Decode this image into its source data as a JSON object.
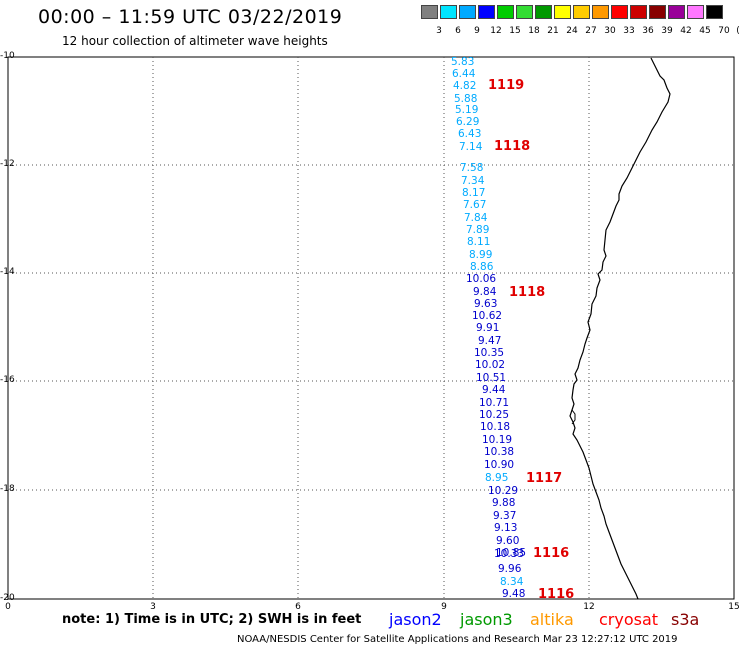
{
  "title": "00:00 – 11:59 UTC 03/22/2019",
  "subtitle": "12 hour collection of altimeter wave heights",
  "color_scale": {
    "labels": [
      "3",
      "6",
      "9",
      "12",
      "15",
      "18",
      "21",
      "24",
      "27",
      "30",
      "33",
      "36",
      "39",
      "42",
      "45",
      "70",
      "(ft)"
    ],
    "colors": [
      "#808080",
      "#00e5ff",
      "#00aaff",
      "#0000ff",
      "#00cc00",
      "#33dd33",
      "#009900",
      "#ffff00",
      "#ffcc00",
      "#ff9900",
      "#ff0000",
      "#cc0000",
      "#880000",
      "#990099",
      "#ff77ff",
      "#000000"
    ]
  },
  "axes": {
    "y_ticks": [
      "-10",
      "-12",
      "-14",
      "-16",
      "-18",
      "-20"
    ],
    "x_ticks": [
      "0",
      "3",
      "6",
      "9",
      "12",
      "15"
    ]
  },
  "wave_heights": [
    {
      "v": "5.83",
      "c": "#00aaff"
    },
    {
      "v": "6.44",
      "c": "#00aaff"
    },
    {
      "v": "4.82",
      "c": "#00aaff"
    },
    {
      "v": "5.88",
      "c": "#00aaff"
    },
    {
      "v": "5.19",
      "c": "#00aaff"
    },
    {
      "v": "6.29",
      "c": "#00aaff"
    },
    {
      "v": "6.43",
      "c": "#00aaff"
    },
    {
      "v": "7.14",
      "c": "#00aaff"
    },
    {
      "v": "7.58",
      "c": "#00aaff"
    },
    {
      "v": "7.34",
      "c": "#00aaff"
    },
    {
      "v": "8.17",
      "c": "#00aaff"
    },
    {
      "v": "7.67",
      "c": "#00aaff"
    },
    {
      "v": "7.84",
      "c": "#00aaff"
    },
    {
      "v": "7.89",
      "c": "#00aaff"
    },
    {
      "v": "8.11",
      "c": "#00aaff"
    },
    {
      "v": "8.99",
      "c": "#00aaff"
    },
    {
      "v": "8.86",
      "c": "#00aaff"
    },
    {
      "v": "10.06",
      "c": "#0000cc"
    },
    {
      "v": "9.84",
      "c": "#0000cc"
    },
    {
      "v": "9.63",
      "c": "#0000cc"
    },
    {
      "v": "10.62",
      "c": "#0000cc"
    },
    {
      "v": "9.91",
      "c": "#0000cc"
    },
    {
      "v": "9.47",
      "c": "#0000cc"
    },
    {
      "v": "10.35",
      "c": "#0000cc"
    },
    {
      "v": "10.02",
      "c": "#0000cc"
    },
    {
      "v": "10.51",
      "c": "#0000cc"
    },
    {
      "v": "9.44",
      "c": "#0000cc"
    },
    {
      "v": "10.71",
      "c": "#0000cc"
    },
    {
      "v": "10.25",
      "c": "#0000cc"
    },
    {
      "v": "10.18",
      "c": "#0000cc"
    },
    {
      "v": "10.19",
      "c": "#0000cc"
    },
    {
      "v": "10.38",
      "c": "#0000cc"
    },
    {
      "v": "10.90",
      "c": "#0000cc"
    },
    {
      "v": "8.95",
      "c": "#00aaff"
    },
    {
      "v": "10.29",
      "c": "#0000cc"
    },
    {
      "v": "9.88",
      "c": "#0000cc"
    },
    {
      "v": "9.37",
      "c": "#0000cc"
    },
    {
      "v": "9.13",
      "c": "#0000cc"
    },
    {
      "v": "9.60",
      "c": "#0000cc"
    },
    {
      "v": "10.33",
      "c": "#0000cc"
    },
    {
      "v": "10.85",
      "c": "#0000cc"
    },
    {
      "v": "9.96",
      "c": "#0000cc"
    },
    {
      "v": "8.34",
      "c": "#00aaff"
    },
    {
      "v": "9.48",
      "c": "#0000cc"
    }
  ],
  "pass_labels": [
    "1119",
    "1118",
    "1118",
    "1117",
    "1116",
    "1116"
  ],
  "legend": {
    "note": "note: 1) Time is in UTC; 2) SWH is in feet",
    "satellites": [
      {
        "name": "jason2",
        "color": "#0000ff"
      },
      {
        "name": "jason3",
        "color": "#009900"
      },
      {
        "name": "altika",
        "color": "#ff9900"
      },
      {
        "name": "cryosat",
        "color": "#ff0000"
      },
      {
        "name": "s3a",
        "color": "#880000"
      }
    ]
  },
  "footer": "NOAA/NESDIS Center for Satellite Applications and Research    Mar 23 12:27:12 UTC 2019"
}
